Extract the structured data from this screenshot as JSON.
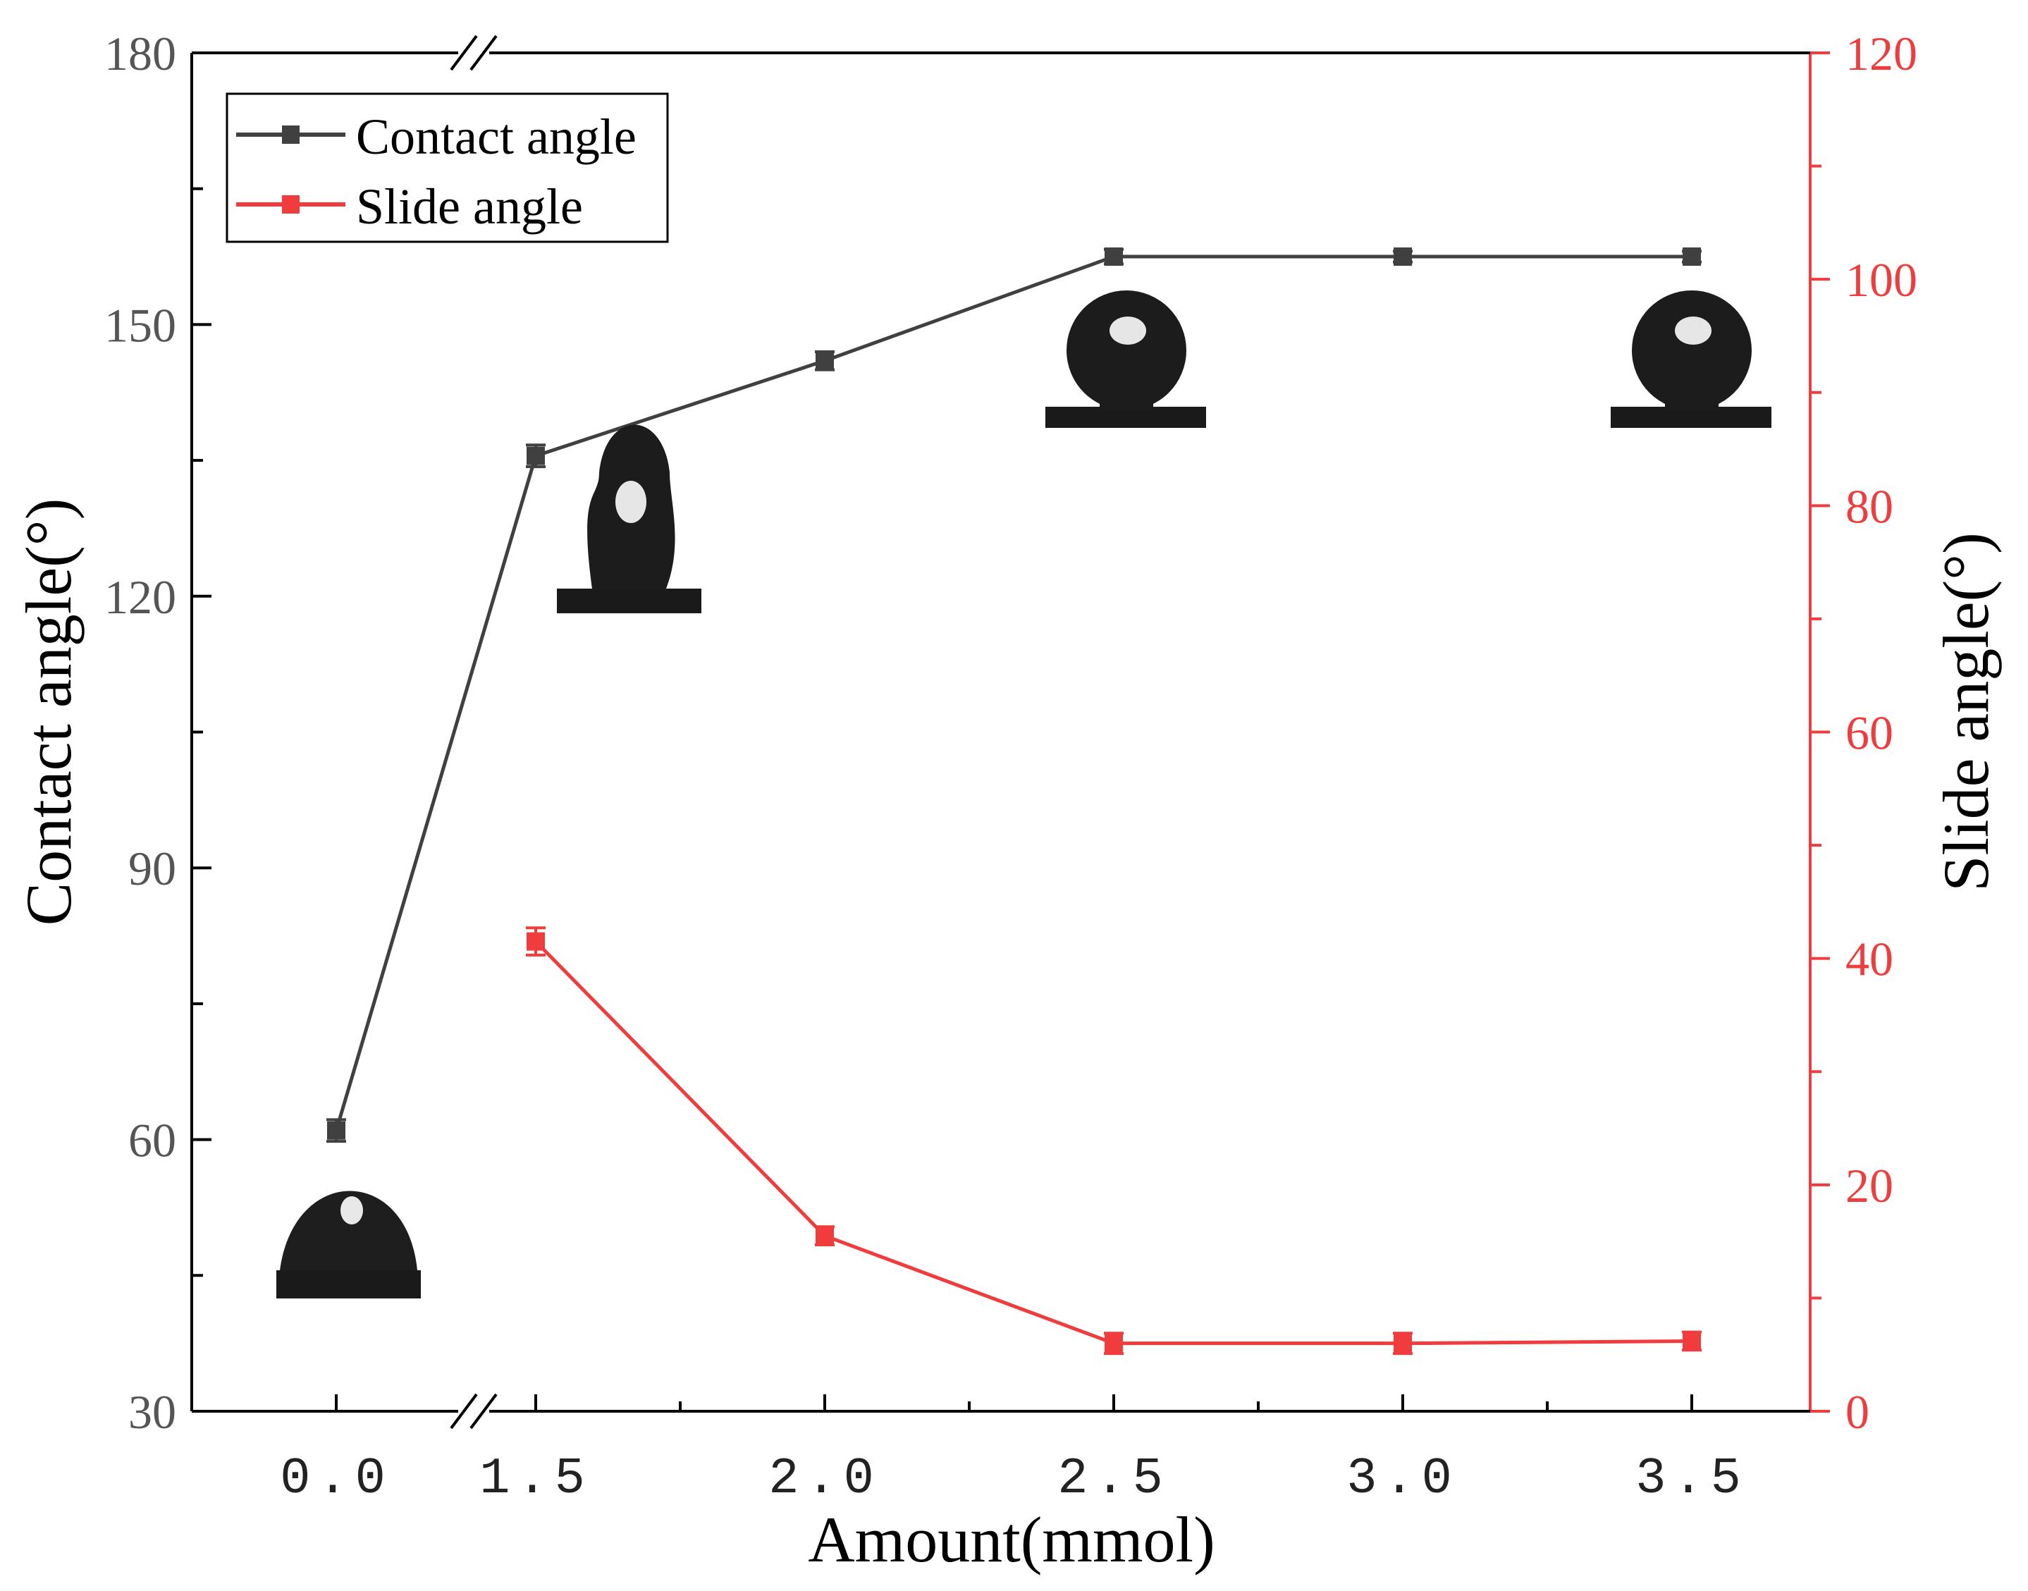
{
  "chart_data": {
    "type": "line",
    "xlabel": "Amount(mmol)",
    "ylabel_left": "Contact angle(°)",
    "ylabel_right": "Slide angle(°)",
    "x_tick_labels": [
      "0.0",
      "1.5",
      "2.0",
      "2.5",
      "3.0",
      "3.5"
    ],
    "x_axis_break": "between 0.0 and 1.5",
    "y_left_ticks": [
      "30",
      "60",
      "90",
      "120",
      "150",
      "180"
    ],
    "y_right_ticks": [
      "0",
      "20",
      "40",
      "60",
      "80",
      "100",
      "120"
    ],
    "ylim_left": [
      30,
      180
    ],
    "ylim_right": [
      0,
      120
    ],
    "legend_position": "top-left",
    "series": [
      {
        "name": "Contact angle",
        "axis": "left",
        "color": "#404040",
        "x": [
          0.0,
          1.5,
          2.0,
          2.5,
          3.0,
          3.5
        ],
        "values": [
          61,
          135.5,
          146,
          157.5,
          157.5,
          157.5
        ],
        "errors": [
          1.2,
          1.2,
          1.0,
          0.8,
          0.6,
          0.6
        ]
      },
      {
        "name": "Slide angle",
        "axis": "right",
        "color": "#f03c3c",
        "x": [
          1.5,
          2.0,
          2.5,
          3.0,
          3.5
        ],
        "values": [
          41.5,
          15.5,
          6,
          6,
          6.2
        ],
        "errors": [
          1.2,
          0.8,
          0.9,
          0.9,
          0.8
        ]
      }
    ],
    "inset_images": [
      {
        "name": "droplet-at-0.0",
        "x": 0.0,
        "value": 52,
        "description": "low contact angle droplet"
      },
      {
        "name": "droplet-at-1.5",
        "x": 1.5,
        "value": 125,
        "description": "tall droplet"
      },
      {
        "name": "droplet-at-2.5",
        "x": 2.5,
        "value": 145,
        "description": "spherical droplet"
      },
      {
        "name": "droplet-at-3.5",
        "x": 3.5,
        "value": 145,
        "description": "spherical droplet"
      }
    ]
  }
}
